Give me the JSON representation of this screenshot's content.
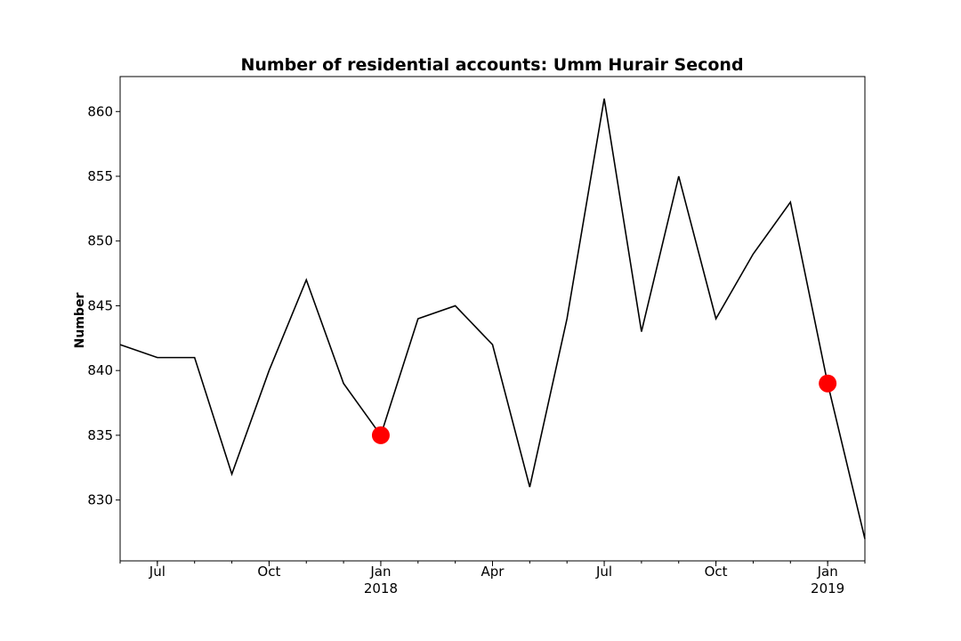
{
  "chart_data": {
    "type": "line",
    "title": "Number of residential accounts: Umm Hurair Second",
    "xlabel": "",
    "ylabel": "Number",
    "x": [
      "2017-06",
      "2017-07",
      "2017-08",
      "2017-09",
      "2017-10",
      "2017-11",
      "2017-12",
      "2018-01",
      "2018-02",
      "2018-03",
      "2018-04",
      "2018-05",
      "2018-06",
      "2018-07",
      "2018-08",
      "2018-09",
      "2018-10",
      "2018-11",
      "2018-12",
      "2019-01",
      "2019-02"
    ],
    "series": [
      {
        "values": [
          842,
          841,
          841,
          832,
          840,
          847,
          839,
          835,
          844,
          845,
          842,
          831,
          844,
          861,
          843,
          855,
          844,
          849,
          853,
          839,
          827
        ],
        "color": "#000000"
      }
    ],
    "highlights": [
      {
        "x": "2018-01",
        "y": 835
      },
      {
        "x": "2019-01",
        "y": 839
      }
    ],
    "highlight_color": "#ff0000",
    "xlim": [
      "2017-06",
      "2019-02"
    ],
    "ylim": [
      825.3,
      862.7
    ],
    "yticks": [
      830,
      835,
      840,
      845,
      850,
      855,
      860
    ],
    "ytick_labels": [
      "830",
      "835",
      "840",
      "845",
      "850",
      "855",
      "860"
    ],
    "xticks_major": [
      {
        "x": "2017-07",
        "label": "Jul",
        "sublabel": ""
      },
      {
        "x": "2017-10",
        "label": "Oct",
        "sublabel": ""
      },
      {
        "x": "2018-01",
        "label": "Jan",
        "sublabel": "2018"
      },
      {
        "x": "2018-04",
        "label": "Apr",
        "sublabel": ""
      },
      {
        "x": "2018-07",
        "label": "Jul",
        "sublabel": ""
      },
      {
        "x": "2018-10",
        "label": "Oct",
        "sublabel": ""
      },
      {
        "x": "2019-01",
        "label": "Jan",
        "sublabel": "2019"
      }
    ],
    "grid": false,
    "legend": "none"
  }
}
